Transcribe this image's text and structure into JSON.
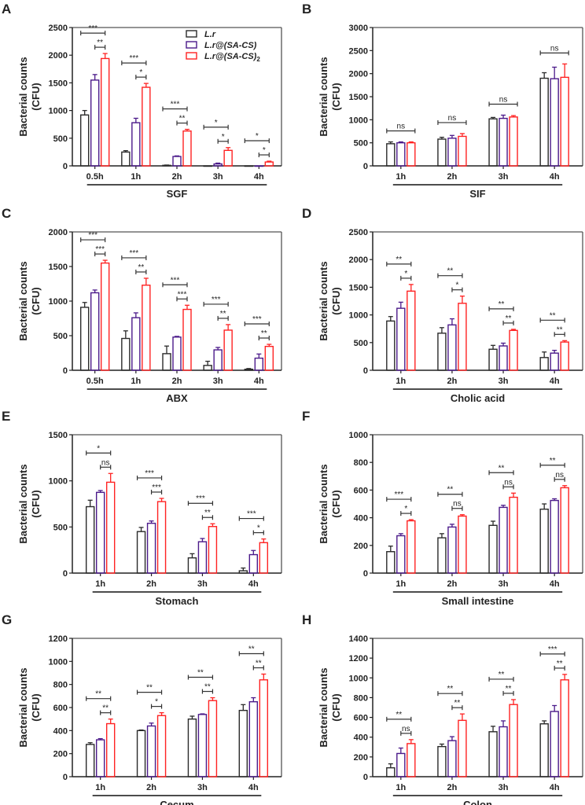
{
  "colors": {
    "L.r": "#2a2a2a",
    "L.r@(SA-CS)": "#4b1a8a",
    "L.r@(SA-CS)2": "#ff2222"
  },
  "legend": [
    {
      "label": "L.r",
      "sub": ""
    },
    {
      "label": "L.r@(SA-CS)",
      "sub": ""
    },
    {
      "label": "L.r@(SA-CS)",
      "sub": "2"
    }
  ],
  "chart_data": [
    {
      "panel": "A",
      "type": "bar",
      "xlabel": "SGF",
      "ylabel": [
        "Bacterial counts",
        "(CFU)"
      ],
      "ylim": [
        0,
        2500
      ],
      "yticks": [
        0,
        500,
        1000,
        1500,
        2000,
        2500
      ],
      "categories": [
        "0.5h",
        "1h",
        "2h",
        "3h",
        "4h"
      ],
      "series": [
        {
          "name": "L.r",
          "values": [
            920,
            250,
            10,
            0,
            0
          ],
          "errors": [
            80,
            25,
            5,
            0,
            0
          ]
        },
        {
          "name": "L.r@(SA-CS)",
          "values": [
            1550,
            780,
            170,
            35,
            0
          ],
          "errors": [
            100,
            80,
            10,
            15,
            0
          ]
        },
        {
          "name": "L.r@(SA-CS)2",
          "values": [
            1940,
            1420,
            630,
            280,
            70
          ],
          "errors": [
            90,
            70,
            30,
            50,
            15
          ]
        }
      ],
      "significance": [
        [
          "***",
          "**"
        ],
        [
          "***",
          "*"
        ],
        [
          "***",
          "**"
        ],
        [
          "*",
          "*"
        ],
        [
          "*",
          "*"
        ]
      ]
    },
    {
      "panel": "B",
      "type": "bar",
      "xlabel": "SIF",
      "ylabel": [
        "Bacterial counts",
        "(CFU)"
      ],
      "ylim": [
        0,
        3000
      ],
      "yticks": [
        0,
        500,
        1000,
        1500,
        2000,
        2500,
        3000
      ],
      "categories": [
        "1h",
        "2h",
        "3h",
        "4h"
      ],
      "series": [
        {
          "name": "L.r",
          "values": [
            480,
            580,
            1020,
            1900
          ],
          "errors": [
            40,
            40,
            30,
            120
          ]
        },
        {
          "name": "L.r@(SA-CS)",
          "values": [
            500,
            600,
            1030,
            1890
          ],
          "errors": [
            20,
            60,
            70,
            250
          ]
        },
        {
          "name": "L.r@(SA-CS)2",
          "values": [
            500,
            640,
            1060,
            1920
          ],
          "errors": [
            20,
            60,
            30,
            290
          ]
        }
      ],
      "significance": [
        [
          "ns"
        ],
        [
          "ns"
        ],
        [
          "ns"
        ],
        [
          "ns"
        ]
      ]
    },
    {
      "panel": "C",
      "type": "bar",
      "xlabel": "ABX",
      "ylabel": [
        "Bacterial counts",
        "(CFU)"
      ],
      "ylim": [
        0,
        2000
      ],
      "yticks": [
        0,
        500,
        1000,
        1500,
        2000
      ],
      "categories": [
        "0.5h",
        "1h",
        "2h",
        "3h",
        "4h"
      ],
      "series": [
        {
          "name": "L.r",
          "values": [
            910,
            460,
            240,
            70,
            15
          ],
          "errors": [
            70,
            110,
            110,
            60,
            10
          ]
        },
        {
          "name": "L.r@(SA-CS)",
          "values": [
            1120,
            760,
            480,
            295,
            175
          ],
          "errors": [
            40,
            70,
            10,
            35,
            60
          ]
        },
        {
          "name": "L.r@(SA-CS)2",
          "values": [
            1550,
            1230,
            880,
            580,
            345
          ],
          "errors": [
            40,
            100,
            60,
            80,
            30
          ]
        }
      ],
      "significance": [
        [
          "***",
          "***"
        ],
        [
          "***",
          "**"
        ],
        [
          "***",
          "***"
        ],
        [
          "***",
          "**"
        ],
        [
          "***",
          "**"
        ]
      ]
    },
    {
      "panel": "D",
      "type": "bar",
      "xlabel": "Cholic acid",
      "ylabel": [
        "Bacterial counts",
        "(CFU)"
      ],
      "ylim": [
        0,
        2500
      ],
      "yticks": [
        0,
        500,
        1000,
        1500,
        2000,
        2500
      ],
      "categories": [
        "1h",
        "2h",
        "3h",
        "4h"
      ],
      "series": [
        {
          "name": "L.r",
          "values": [
            890,
            670,
            380,
            230
          ],
          "errors": [
            80,
            100,
            70,
            100
          ]
        },
        {
          "name": "L.r@(SA-CS)",
          "values": [
            1120,
            820,
            440,
            310
          ],
          "errors": [
            110,
            110,
            50,
            50
          ]
        },
        {
          "name": "L.r@(SA-CS)2",
          "values": [
            1430,
            1210,
            720,
            510
          ],
          "errors": [
            120,
            130,
            20,
            25
          ]
        }
      ],
      "significance": [
        [
          "**",
          "*"
        ],
        [
          "**",
          "*"
        ],
        [
          "**",
          "**"
        ],
        [
          "**",
          "**"
        ]
      ]
    },
    {
      "panel": "E",
      "type": "bar",
      "xlabel": "Stomach",
      "ylabel": [
        "Bacterial counts",
        "(CFU)"
      ],
      "ylim": [
        0,
        1500
      ],
      "yticks": [
        0,
        500,
        1000,
        1500
      ],
      "categories": [
        "1h",
        "2h",
        "3h",
        "4h"
      ],
      "series": [
        {
          "name": "L.r",
          "values": [
            720,
            450,
            165,
            25
          ],
          "errors": [
            70,
            45,
            45,
            30
          ]
        },
        {
          "name": "L.r@(SA-CS)",
          "values": [
            875,
            540,
            340,
            200
          ],
          "errors": [
            20,
            25,
            35,
            45
          ]
        },
        {
          "name": "L.r@(SA-CS)2",
          "values": [
            985,
            775,
            505,
            330
          ],
          "errors": [
            95,
            35,
            30,
            40
          ]
        }
      ],
      "significance": [
        [
          "*",
          "ns"
        ],
        [
          "***",
          "***"
        ],
        [
          "***",
          "**"
        ],
        [
          "***",
          "*"
        ]
      ]
    },
    {
      "panel": "F",
      "type": "bar",
      "xlabel": "Small intestine",
      "ylabel": [
        "Bacterial counts",
        "(CFU)"
      ],
      "ylim": [
        0,
        1000
      ],
      "yticks": [
        0,
        200,
        400,
        600,
        800,
        1000
      ],
      "categories": [
        "1h",
        "2h",
        "3h",
        "4h"
      ],
      "series": [
        {
          "name": "L.r",
          "values": [
            155,
            255,
            345,
            462
          ],
          "errors": [
            40,
            30,
            30,
            38
          ]
        },
        {
          "name": "L.r@(SA-CS)",
          "values": [
            270,
            333,
            475,
            525
          ],
          "errors": [
            15,
            20,
            15,
            12
          ]
        },
        {
          "name": "L.r@(SA-CS)2",
          "values": [
            378,
            412,
            548,
            617
          ],
          "errors": [
            8,
            10,
            30,
            15
          ]
        }
      ],
      "significance": [
        [
          "***",
          "*"
        ],
        [
          "**",
          "ns"
        ],
        [
          "**",
          "ns"
        ],
        [
          "**",
          "ns"
        ]
      ]
    },
    {
      "panel": "G",
      "type": "bar",
      "xlabel": "Cecum",
      "ylabel": [
        "Bacterial counts",
        "(CFU)"
      ],
      "ylim": [
        0,
        1200
      ],
      "yticks": [
        0,
        200,
        400,
        600,
        800,
        1000,
        1200
      ],
      "categories": [
        "1h",
        "2h",
        "3h",
        "4h"
      ],
      "series": [
        {
          "name": "L.r",
          "values": [
            280,
            400,
            500,
            575
          ],
          "errors": [
            15,
            5,
            25,
            50
          ]
        },
        {
          "name": "L.r@(SA-CS)",
          "values": [
            320,
            440,
            540,
            650
          ],
          "errors": [
            10,
            25,
            5,
            35
          ]
        },
        {
          "name": "L.r@(SA-CS)2",
          "values": [
            460,
            530,
            660,
            840
          ],
          "errors": [
            40,
            25,
            25,
            50
          ]
        }
      ],
      "significance": [
        [
          "**",
          "**"
        ],
        [
          "**",
          "*"
        ],
        [
          "**",
          "**"
        ],
        [
          "**",
          "**"
        ]
      ]
    },
    {
      "panel": "H",
      "type": "bar",
      "xlabel": "Colon",
      "ylabel": [
        "Bacterial counts",
        "(CFU)"
      ],
      "ylim": [
        0,
        1400
      ],
      "yticks": [
        0,
        200,
        400,
        600,
        800,
        1000,
        1200,
        1400
      ],
      "categories": [
        "1h",
        "2h",
        "3h",
        "4h"
      ],
      "series": [
        {
          "name": "L.r",
          "values": [
            90,
            305,
            455,
            535
          ],
          "errors": [
            40,
            25,
            55,
            30
          ]
        },
        {
          "name": "L.r@(SA-CS)",
          "values": [
            235,
            365,
            505,
            660
          ],
          "errors": [
            55,
            40,
            60,
            60
          ]
        },
        {
          "name": "L.r@(SA-CS)2",
          "values": [
            335,
            570,
            730,
            980
          ],
          "errors": [
            40,
            65,
            50,
            55
          ]
        }
      ],
      "significance": [
        [
          "**",
          "ns"
        ],
        [
          "**",
          "**"
        ],
        [
          "**",
          "**"
        ],
        [
          "***",
          "**"
        ]
      ]
    }
  ]
}
